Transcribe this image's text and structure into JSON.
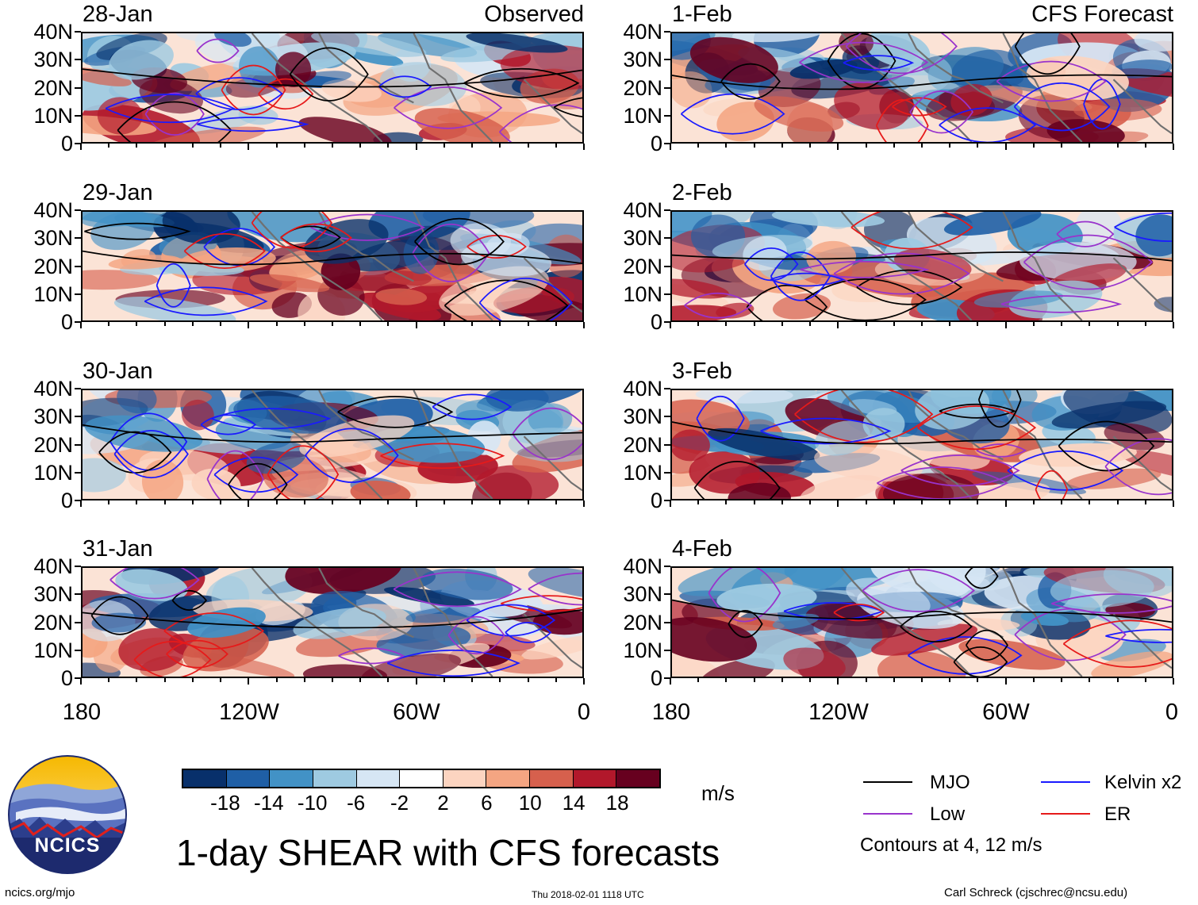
{
  "panels_left": [
    {
      "date": "28-Jan",
      "corner": "Observed"
    },
    {
      "date": "29-Jan",
      "corner": ""
    },
    {
      "date": "30-Jan",
      "corner": ""
    },
    {
      "date": "31-Jan",
      "corner": ""
    }
  ],
  "panels_right": [
    {
      "date": "1-Feb",
      "corner": "CFS Forecast"
    },
    {
      "date": "2-Feb",
      "corner": ""
    },
    {
      "date": "3-Feb",
      "corner": ""
    },
    {
      "date": "4-Feb",
      "corner": ""
    }
  ],
  "y_ticks": [
    "40N",
    "30N",
    "20N",
    "10N",
    "0"
  ],
  "x_ticks": [
    "180",
    "120W",
    "60W",
    "0"
  ],
  "colorbar": {
    "labels": [
      "-18",
      "-14",
      "-10",
      "-6",
      "-2",
      "2",
      "6",
      "10",
      "14",
      "18"
    ],
    "colors": [
      "#08306b",
      "#1f5fa6",
      "#4292c6",
      "#9ecae1",
      "#d6e6f4",
      "#ffffff",
      "#fcd4c0",
      "#f4a582",
      "#d6604d",
      "#b2182b",
      "#67001f"
    ],
    "unit": "m/s"
  },
  "title": "1-day SHEAR with CFS forecasts",
  "legend": {
    "items": [
      {
        "label": "MJO",
        "color": "#000000"
      },
      {
        "label": "Kelvin x2",
        "color": "#1a1aff"
      },
      {
        "label": "Low",
        "color": "#9933cc"
      },
      {
        "label": "ER",
        "color": "#e61a1a"
      }
    ],
    "note": "Contours at 4, 12 m/s"
  },
  "logo": {
    "text": "NCICS"
  },
  "footer": {
    "left": "ncics.org/mjo",
    "center": "Thu 2018-02-01 1118 UTC",
    "right": "Carl Schreck (cjschrec@ncsu.edu)"
  }
}
